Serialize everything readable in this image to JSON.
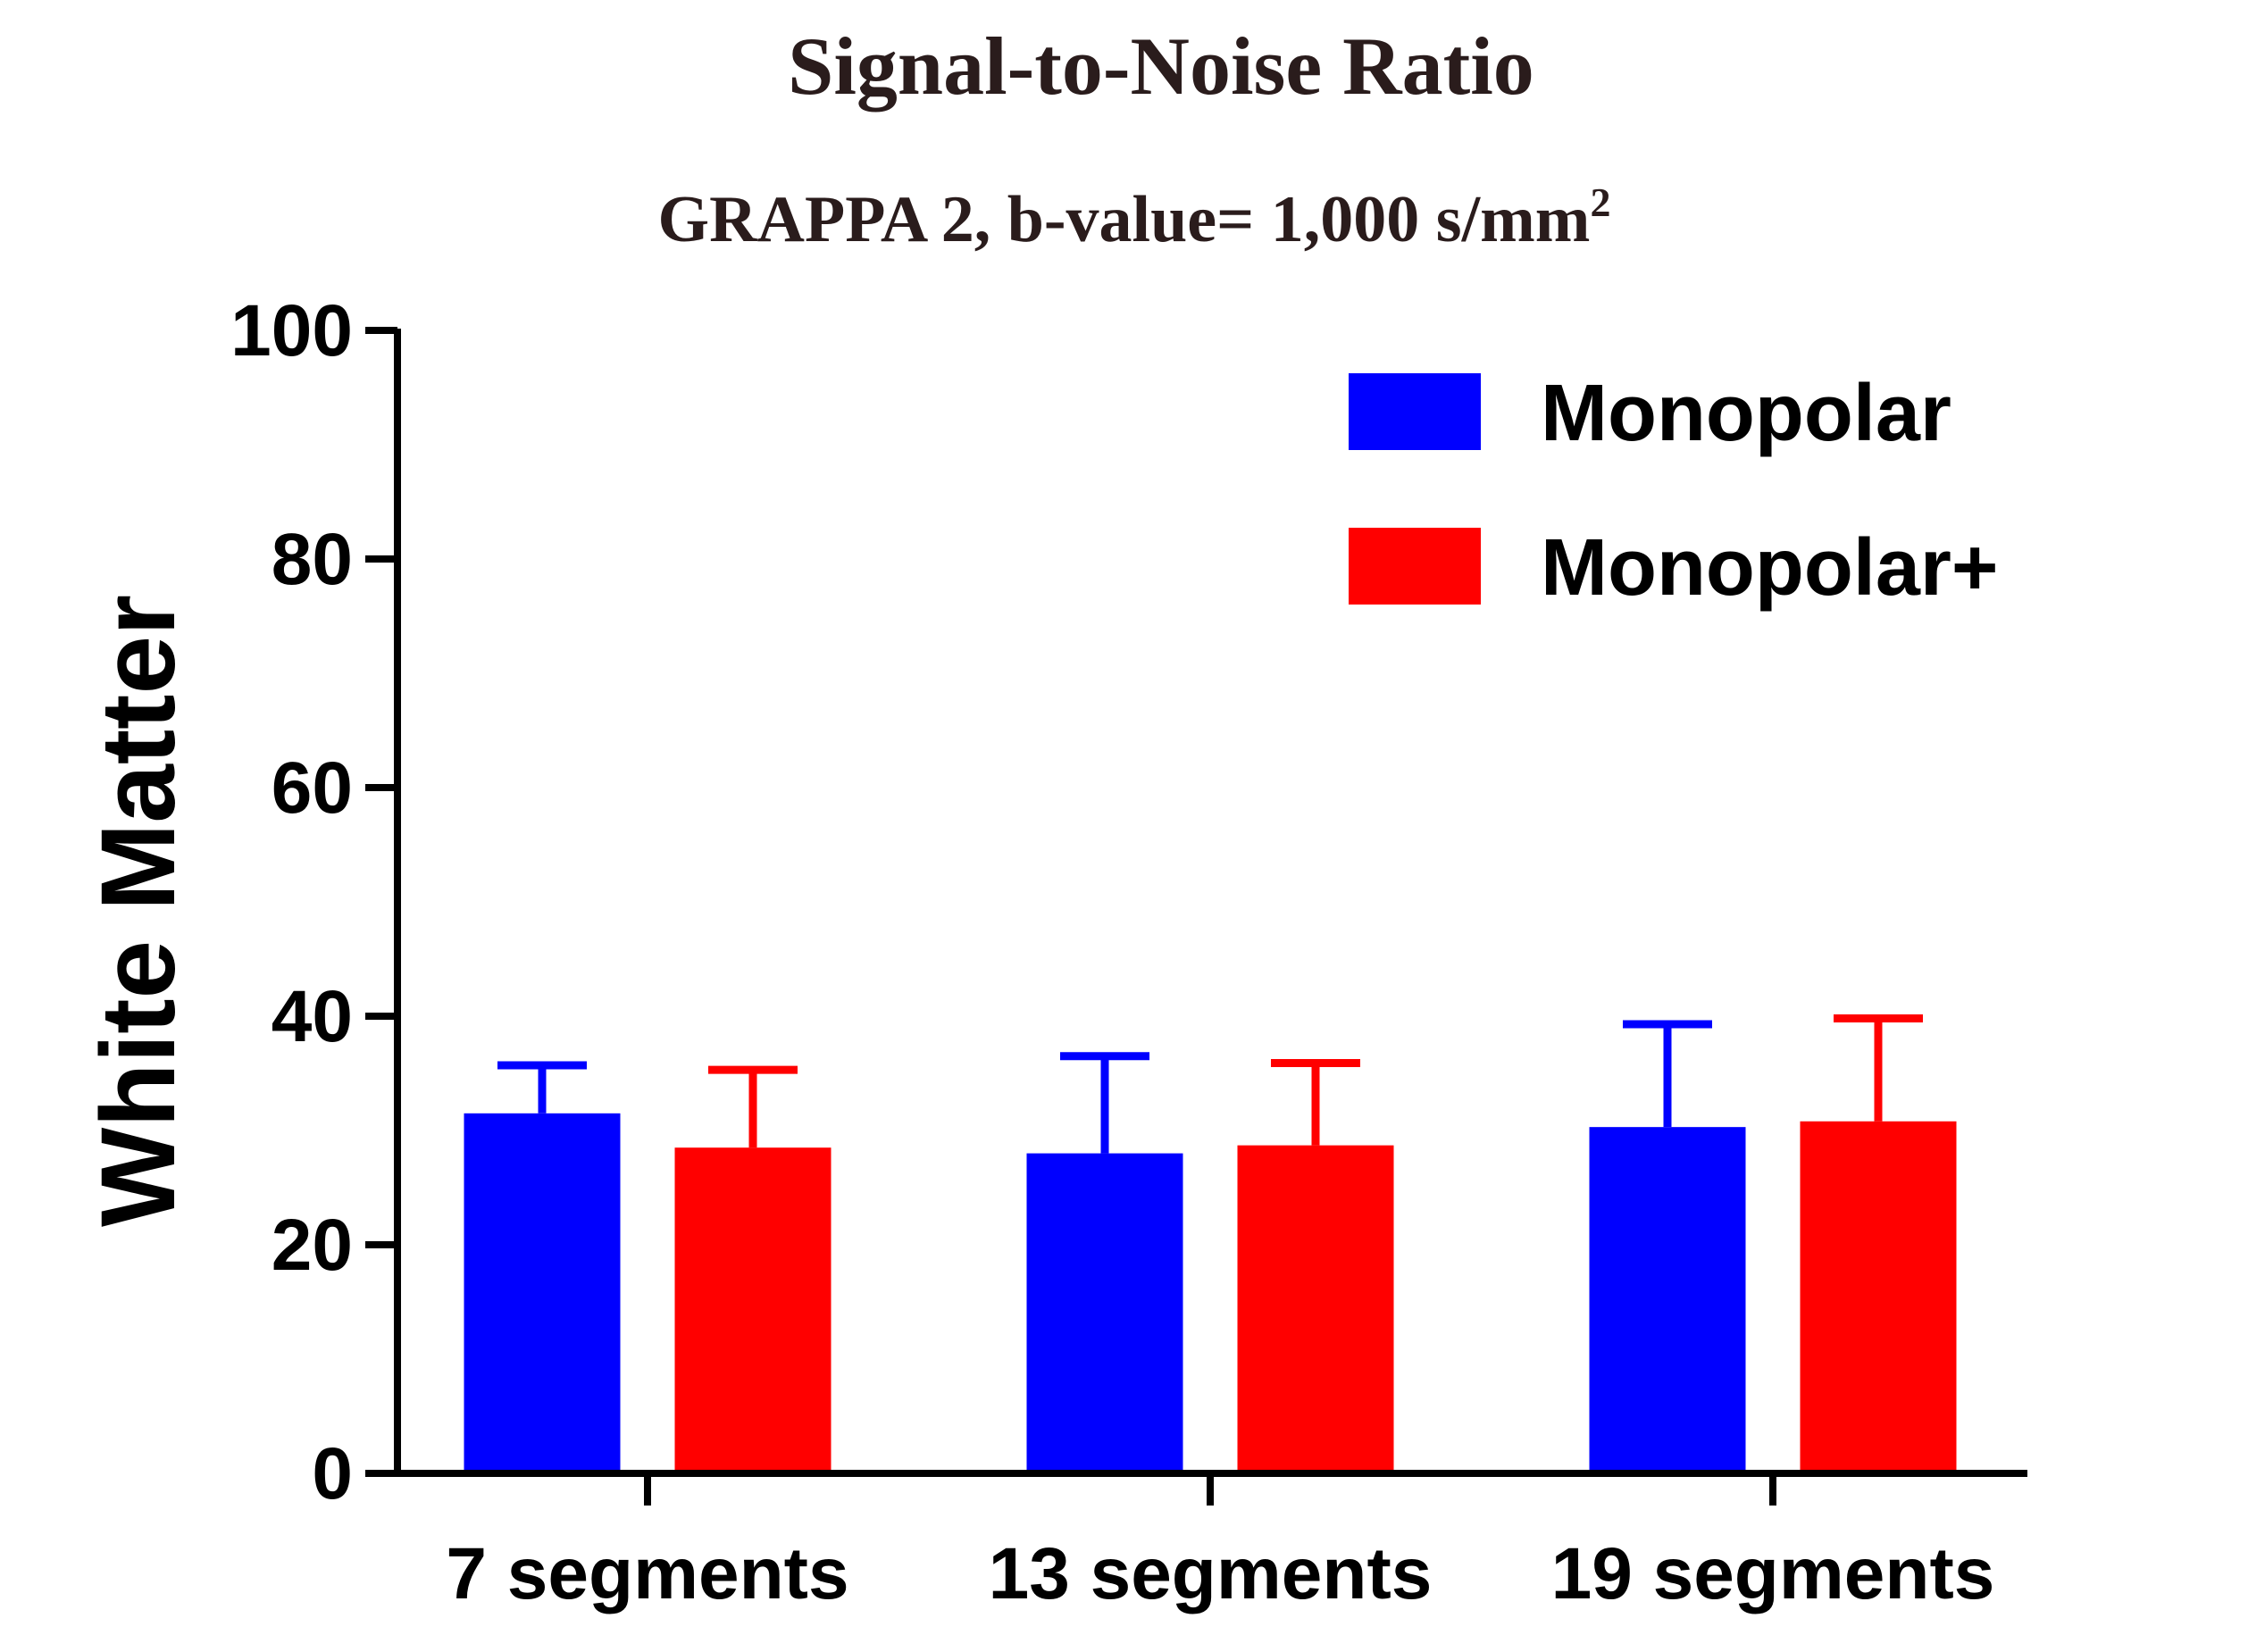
{
  "chart_data": {
    "type": "bar",
    "title": "Signal-to-Noise Ratio",
    "subtitle_main": "GRAPPA 2, b-value= 1,000 s/mm",
    "subtitle_sup": "2",
    "xlabel": "",
    "ylabel": "White Matter",
    "ylim": [
      0,
      100
    ],
    "yticks": [
      0,
      20,
      40,
      60,
      80,
      100
    ],
    "categories": [
      "7 segments",
      "13 segments",
      "19 segments"
    ],
    "series": [
      {
        "name": "Monopolar",
        "color": "#0000ff",
        "values": [
          31.5,
          28.0,
          30.3
        ],
        "errors": [
          4.2,
          8.5,
          9.0
        ]
      },
      {
        "name": "Monopolar+",
        "color": "#ff0000",
        "values": [
          28.5,
          28.7,
          30.8
        ],
        "errors": [
          6.8,
          7.2,
          9.0
        ]
      }
    ],
    "legend_position": "top-right",
    "grid": false
  }
}
